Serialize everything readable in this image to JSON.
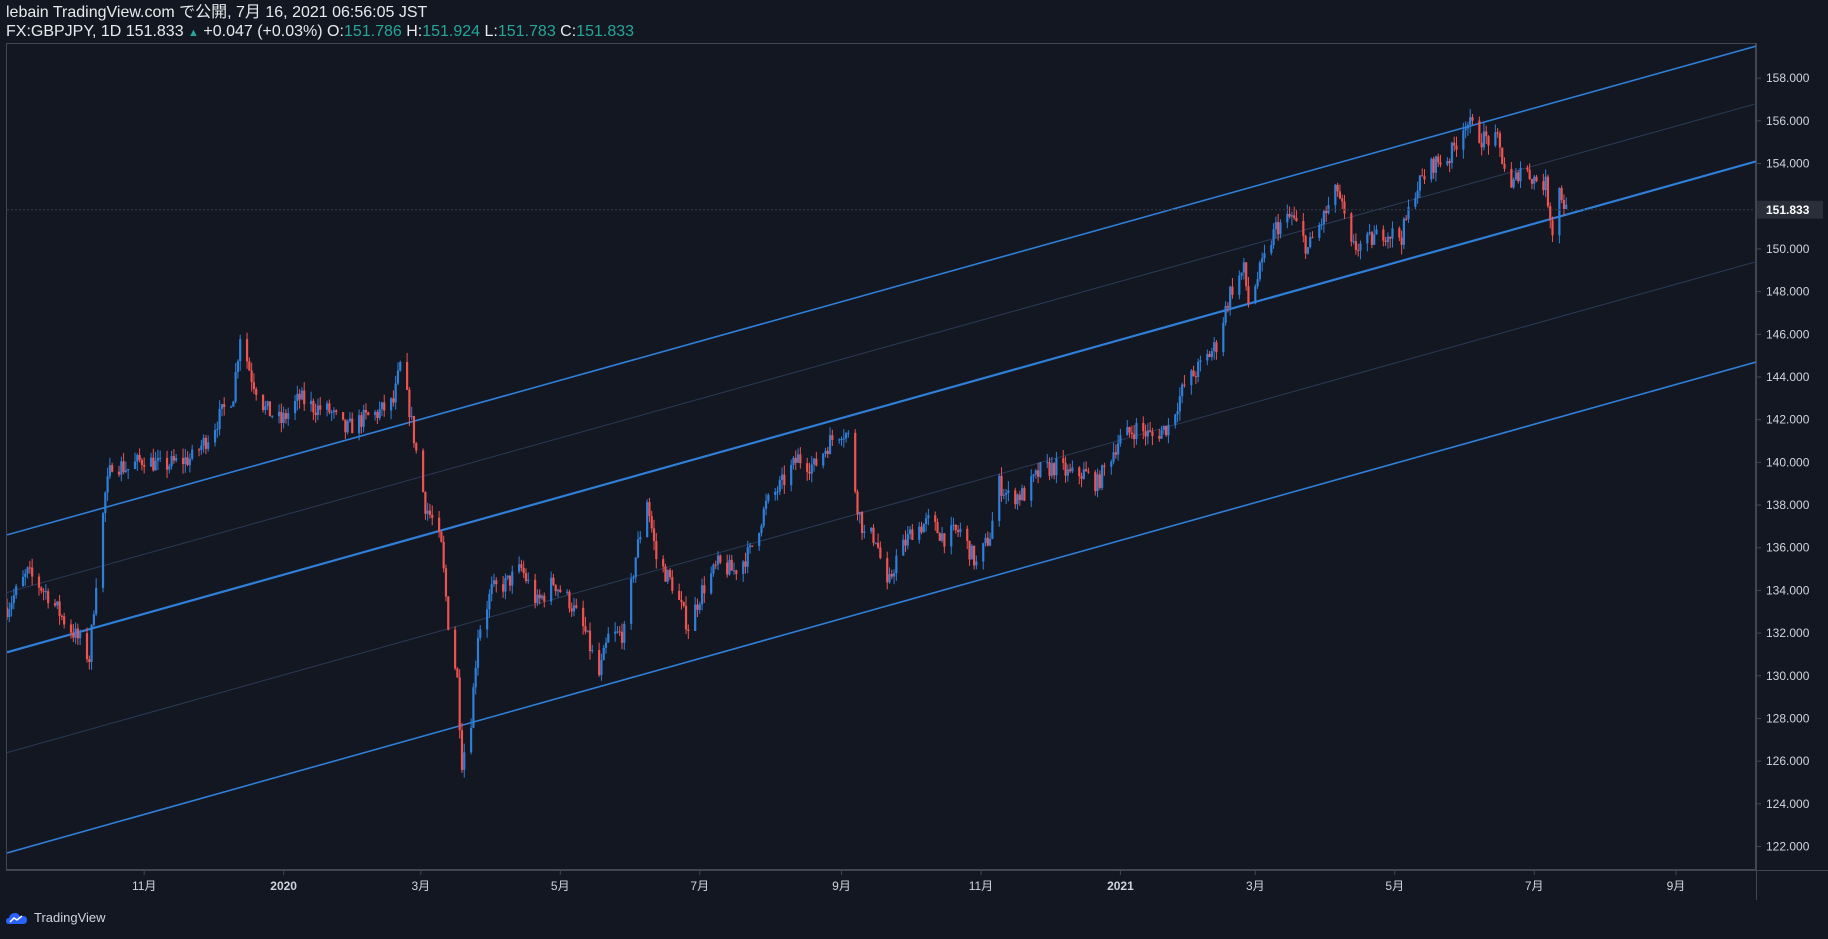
{
  "header": {
    "line1": "lebain TradingView.com で公開, 7月 16, 2021 06:56:05 JST",
    "symbol": "FX:GBPJPY, 1D 151.833",
    "change_arrow": "▲",
    "change": "+0.047 (+0.03%)",
    "o_label": "O:",
    "o_value": "151.786",
    "h_label": "H:",
    "h_value": "151.924",
    "l_label": "L:",
    "l_value": "151.783",
    "c_label": "C:",
    "c_value": "151.833"
  },
  "footer": {
    "brand": "TradingView"
  },
  "colors": {
    "background": "#131722",
    "up": "#2f7fd9",
    "down": "#ef5350",
    "channel": "#2f7fd9",
    "grid_text": "#d1d4dc",
    "teal": "#26a69a"
  },
  "chart_data": {
    "type": "candlestick",
    "symbol": "FX:GBPJPY",
    "interval": "1D",
    "last_price": 151.833,
    "last_price_label": "151.833",
    "y_ticks": [
      122,
      124,
      126,
      128,
      130,
      132,
      134,
      136,
      138,
      140,
      142,
      144,
      146,
      148,
      150,
      152,
      154,
      156,
      158
    ],
    "y_tick_labels": [
      "122.000",
      "124.000",
      "126.000",
      "128.000",
      "130.000",
      "132.000",
      "134.000",
      "136.000",
      "138.000",
      "140.000",
      "142.000",
      "144.000",
      "146.000",
      "148.000",
      "150.000",
      "152.000",
      "154.000",
      "156.000",
      "158.000"
    ],
    "ylim": [
      120.9,
      159.6
    ],
    "xlim": [
      "2019-09-02",
      "2021-10-06"
    ],
    "x_ticks": [
      {
        "label": "11月",
        "date": "2019-11-01"
      },
      {
        "label": "2020",
        "date": "2020-01-01"
      },
      {
        "label": "3月",
        "date": "2020-03-01"
      },
      {
        "label": "5月",
        "date": "2020-05-01"
      },
      {
        "label": "7月",
        "date": "2020-07-01"
      },
      {
        "label": "9月",
        "date": "2020-09-01"
      },
      {
        "label": "11月",
        "date": "2020-11-01"
      },
      {
        "label": "2021",
        "date": "2021-01-01"
      },
      {
        "label": "3月",
        "date": "2021-03-01"
      },
      {
        "label": "5月",
        "date": "2021-05-01"
      },
      {
        "label": "7月",
        "date": "2021-07-01"
      },
      {
        "label": "9月",
        "date": "2021-09-01"
      }
    ],
    "price_path": [
      [
        "2019-09-02",
        133.2
      ],
      [
        "2019-09-11",
        134.8
      ],
      [
        "2019-09-20",
        133.8
      ],
      [
        "2019-09-27",
        132.6
      ],
      [
        "2019-10-04",
        131.6
      ],
      [
        "2019-10-08",
        130.8
      ],
      [
        "2019-10-11",
        134.5
      ],
      [
        "2019-10-15",
        138.5
      ],
      [
        "2019-10-18",
        140.0
      ],
      [
        "2019-10-25",
        139.7
      ],
      [
        "2019-11-01",
        140.2
      ],
      [
        "2019-11-08",
        139.8
      ],
      [
        "2019-11-15",
        140.0
      ],
      [
        "2019-11-22",
        140.2
      ],
      [
        "2019-11-29",
        141.2
      ],
      [
        "2019-12-06",
        142.5
      ],
      [
        "2019-12-10",
        143.2
      ],
      [
        "2019-12-13",
        146.0
      ],
      [
        "2019-12-18",
        144.0
      ],
      [
        "2019-12-24",
        142.5
      ],
      [
        "2019-12-31",
        141.9
      ],
      [
        "2020-01-08",
        143.0
      ],
      [
        "2020-01-14",
        142.6
      ],
      [
        "2020-01-21",
        142.4
      ],
      [
        "2020-01-28",
        141.5
      ],
      [
        "2020-02-04",
        142.0
      ],
      [
        "2020-02-11",
        142.3
      ],
      [
        "2020-02-18",
        142.8
      ],
      [
        "2020-02-21",
        144.5
      ],
      [
        "2020-02-25",
        142.5
      ],
      [
        "2020-02-28",
        140.5
      ],
      [
        "2020-03-03",
        138.0
      ],
      [
        "2020-03-06",
        137.3
      ],
      [
        "2020-03-10",
        136.0
      ],
      [
        "2020-03-13",
        132.5
      ],
      [
        "2020-03-17",
        129.8
      ],
      [
        "2020-03-19",
        126.0
      ],
      [
        "2020-03-23",
        128.0
      ],
      [
        "2020-03-26",
        132.0
      ],
      [
        "2020-04-01",
        134.0
      ],
      [
        "2020-04-07",
        134.3
      ],
      [
        "2020-04-14",
        135.0
      ],
      [
        "2020-04-21",
        133.4
      ],
      [
        "2020-04-28",
        134.4
      ],
      [
        "2020-05-05",
        133.5
      ],
      [
        "2020-05-12",
        132.0
      ],
      [
        "2020-05-18",
        130.0
      ],
      [
        "2020-05-22",
        131.8
      ],
      [
        "2020-05-29",
        132.0
      ],
      [
        "2020-06-03",
        135.6
      ],
      [
        "2020-06-08",
        138.3
      ],
      [
        "2020-06-12",
        135.5
      ],
      [
        "2020-06-19",
        134.3
      ],
      [
        "2020-06-26",
        132.3
      ],
      [
        "2020-07-02",
        134.0
      ],
      [
        "2020-07-09",
        135.2
      ],
      [
        "2020-07-16",
        134.9
      ],
      [
        "2020-07-23",
        135.8
      ],
      [
        "2020-07-30",
        138.0
      ],
      [
        "2020-08-06",
        139.0
      ],
      [
        "2020-08-13",
        140.2
      ],
      [
        "2020-08-20",
        139.8
      ],
      [
        "2020-08-27",
        141.0
      ],
      [
        "2020-09-01",
        141.5
      ],
      [
        "2020-09-04",
        141.2
      ],
      [
        "2020-09-08",
        138.0
      ],
      [
        "2020-09-11",
        136.6
      ],
      [
        "2020-09-16",
        136.5
      ],
      [
        "2020-09-21",
        134.0
      ],
      [
        "2020-09-25",
        135.5
      ],
      [
        "2020-10-02",
        136.8
      ],
      [
        "2020-10-09",
        137.2
      ],
      [
        "2020-10-16",
        136.5
      ],
      [
        "2020-10-23",
        136.8
      ],
      [
        "2020-10-30",
        135.2
      ],
      [
        "2020-11-05",
        136.6
      ],
      [
        "2020-11-09",
        139.0
      ],
      [
        "2020-11-13",
        138.4
      ],
      [
        "2020-11-20",
        138.5
      ],
      [
        "2020-11-27",
        139.6
      ],
      [
        "2020-12-04",
        139.8
      ],
      [
        "2020-12-10",
        139.4
      ],
      [
        "2020-12-16",
        139.5
      ],
      [
        "2020-12-22",
        139.0
      ],
      [
        "2020-12-31",
        141.0
      ],
      [
        "2021-01-08",
        141.6
      ],
      [
        "2021-01-15",
        141.2
      ],
      [
        "2021-01-22",
        141.7
      ],
      [
        "2021-01-29",
        143.6
      ],
      [
        "2021-02-05",
        144.5
      ],
      [
        "2021-02-12",
        145.5
      ],
      [
        "2021-02-18",
        148.0
      ],
      [
        "2021-02-24",
        149.0
      ],
      [
        "2021-02-26",
        147.5
      ],
      [
        "2021-03-05",
        149.5
      ],
      [
        "2021-03-10",
        151.0
      ],
      [
        "2021-03-17",
        151.5
      ],
      [
        "2021-03-24",
        150.0
      ],
      [
        "2021-03-31",
        151.5
      ],
      [
        "2021-04-06",
        152.8
      ],
      [
        "2021-04-12",
        150.0
      ],
      [
        "2021-04-19",
        150.3
      ],
      [
        "2021-04-26",
        150.8
      ],
      [
        "2021-05-04",
        150.6
      ],
      [
        "2021-05-10",
        152.8
      ],
      [
        "2021-05-18",
        154.0
      ],
      [
        "2021-05-25",
        154.3
      ],
      [
        "2021-06-01",
        156.0
      ],
      [
        "2021-06-08",
        155.2
      ],
      [
        "2021-06-15",
        155.0
      ],
      [
        "2021-06-21",
        152.7
      ],
      [
        "2021-06-25",
        153.9
      ],
      [
        "2021-07-01",
        153.3
      ],
      [
        "2021-07-06",
        153.0
      ],
      [
        "2021-07-09",
        150.9
      ],
      [
        "2021-07-12",
        152.8
      ],
      [
        "2021-07-15",
        151.8
      ]
    ],
    "channel_lines": [
      {
        "name": "upper",
        "start": [
          "2019-09-02",
          136.6
        ],
        "end": [
          "2021-10-06",
          159.5
        ]
      },
      {
        "name": "middle",
        "start": [
          "2019-09-02",
          131.1
        ],
        "end": [
          "2021-10-06",
          154.1
        ]
      },
      {
        "name": "lower",
        "start": [
          "2019-09-02",
          121.7
        ],
        "end": [
          "2021-10-06",
          144.7
        ]
      },
      {
        "name": "inner-upper",
        "start": [
          "2019-09-02",
          133.9
        ],
        "end": [
          "2021-10-06",
          156.8
        ]
      },
      {
        "name": "inner-lower",
        "start": [
          "2019-09-02",
          126.4
        ],
        "end": [
          "2021-10-06",
          149.4
        ]
      }
    ]
  }
}
